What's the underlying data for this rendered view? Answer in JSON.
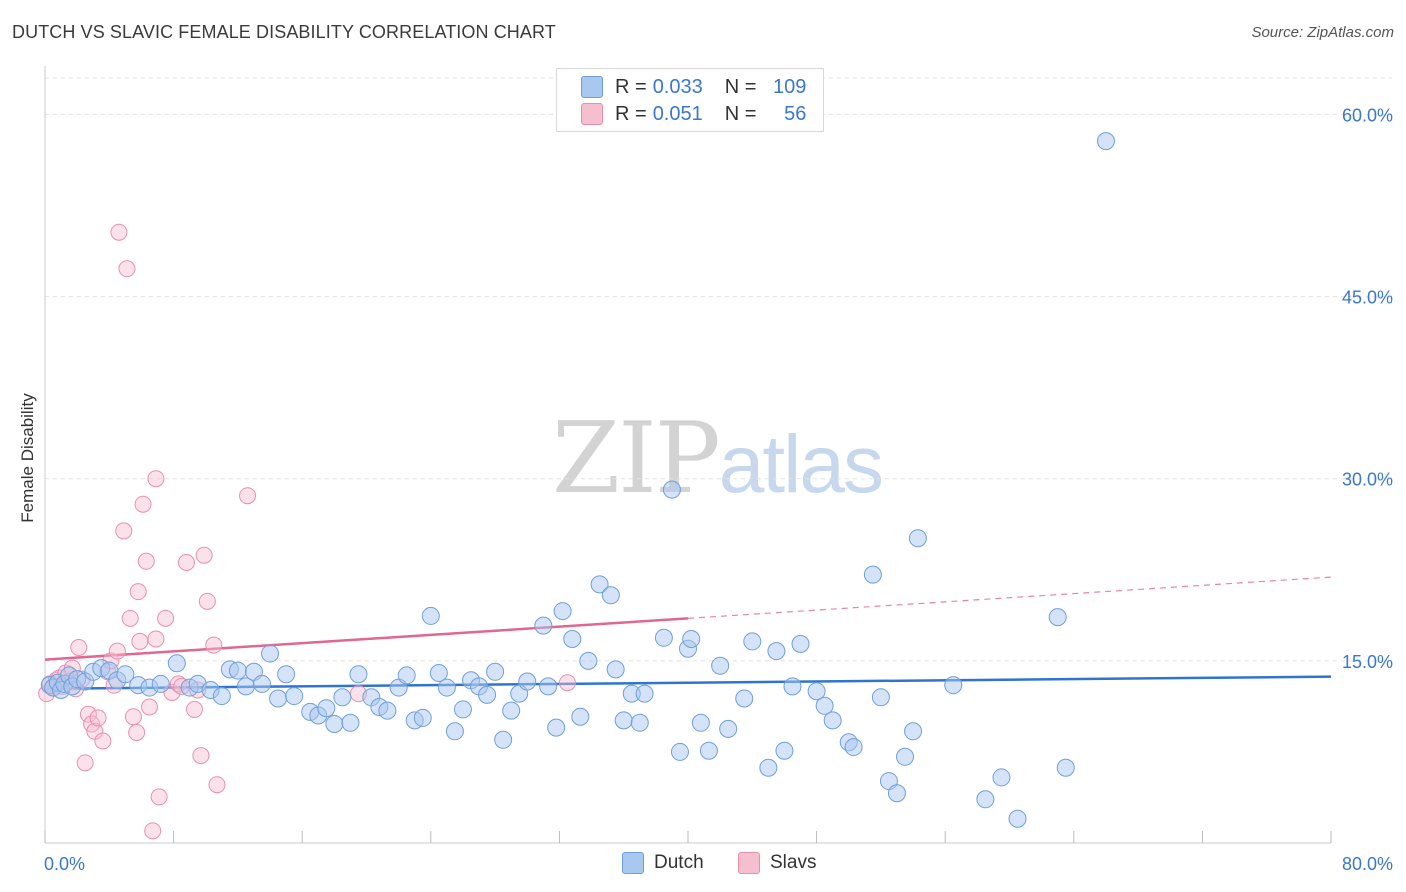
{
  "title": "DUTCH VS SLAVIC FEMALE DISABILITY CORRELATION CHART",
  "source": "Source: ZipAtlas.com",
  "watermark": {
    "zip": "ZIP",
    "atlas": "atlas"
  },
  "legend": {
    "rows": [
      {
        "r_label": "R =",
        "r_value": "0.033",
        "n_label": "N =",
        "n_value": "109"
      },
      {
        "r_label": "R =",
        "r_value": "0.051",
        "n_label": "N =",
        "n_value": "56"
      }
    ]
  },
  "bottom_legend": [
    "Dutch",
    "Slavs"
  ],
  "colors": {
    "dutch_fill": "#a9c8ef",
    "dutch_stroke": "#6f9fda",
    "dutch_line": "#2f74d0",
    "slavs_fill": "#f6bfd0",
    "slavs_stroke": "#e98fae",
    "slavs_line": "#e0678f",
    "tick_label": "#3a77d0",
    "grid": "#e3e3e3"
  },
  "chart_data": {
    "type": "scatter",
    "title": "DUTCH VS SLAVIC FEMALE DISABILITY CORRELATION CHART",
    "xlabel": "",
    "ylabel": "Female Disability",
    "xlim": [
      0,
      80
    ],
    "ylim": [
      0,
      63
    ],
    "x_tick_labels": [
      "0.0%",
      "80.0%"
    ],
    "y_ticks": [
      15,
      30,
      45,
      60
    ],
    "y_tick_labels": [
      "15.0%",
      "30.0%",
      "45.0%",
      "60.0%"
    ],
    "grid": true,
    "legend_position": "top-center",
    "series": [
      {
        "name": "Dutch",
        "R": 0.033,
        "N": 109,
        "trend": {
          "x0": 0,
          "y0": 12.7,
          "x1": 80,
          "y1": 13.7
        },
        "points": [
          [
            0.3,
            13
          ],
          [
            0.5,
            12.8
          ],
          [
            0.8,
            13.2
          ],
          [
            1.0,
            12.6
          ],
          [
            1.2,
            13.1
          ],
          [
            1.5,
            13.8
          ],
          [
            1.7,
            12.9
          ],
          [
            2.0,
            13.5
          ],
          [
            2.5,
            13.3
          ],
          [
            3.0,
            14.1
          ],
          [
            3.5,
            14.4
          ],
          [
            4.0,
            14.2
          ],
          [
            4.5,
            13.4
          ],
          [
            5.0,
            13.9
          ],
          [
            5.8,
            13.0
          ],
          [
            6.5,
            12.8
          ],
          [
            7.2,
            13.1
          ],
          [
            8.2,
            14.8
          ],
          [
            9.0,
            12.8
          ],
          [
            9.5,
            13.1
          ],
          [
            10.3,
            12.6
          ],
          [
            11.0,
            12.1
          ],
          [
            11.5,
            14.3
          ],
          [
            12.0,
            14.2
          ],
          [
            12.5,
            12.9
          ],
          [
            13.0,
            14.1
          ],
          [
            13.5,
            13.1
          ],
          [
            14.0,
            15.6
          ],
          [
            14.5,
            11.9
          ],
          [
            15.0,
            13.9
          ],
          [
            15.5,
            12.1
          ],
          [
            16.5,
            10.8
          ],
          [
            17.0,
            10.5
          ],
          [
            17.5,
            11.1
          ],
          [
            18.0,
            9.8
          ],
          [
            18.5,
            12.0
          ],
          [
            19.0,
            9.9
          ],
          [
            19.5,
            13.9
          ],
          [
            20.3,
            12.0
          ],
          [
            20.8,
            11.2
          ],
          [
            21.3,
            10.9
          ],
          [
            22.0,
            12.8
          ],
          [
            22.5,
            13.8
          ],
          [
            23.0,
            10.1
          ],
          [
            23.5,
            10.3
          ],
          [
            24.0,
            18.7
          ],
          [
            24.5,
            14.0
          ],
          [
            25.0,
            12.8
          ],
          [
            25.5,
            9.2
          ],
          [
            26.0,
            11.0
          ],
          [
            26.5,
            13.4
          ],
          [
            27.0,
            12.9
          ],
          [
            27.5,
            12.2
          ],
          [
            28.0,
            14.1
          ],
          [
            28.5,
            8.5
          ],
          [
            29.0,
            10.9
          ],
          [
            29.5,
            12.3
          ],
          [
            30.0,
            13.3
          ],
          [
            31.0,
            17.9
          ],
          [
            31.3,
            12.9
          ],
          [
            31.8,
            9.5
          ],
          [
            32.2,
            19.1
          ],
          [
            32.8,
            16.8
          ],
          [
            33.3,
            10.4
          ],
          [
            33.8,
            15.0
          ],
          [
            34.5,
            21.3
          ],
          [
            35.2,
            20.4
          ],
          [
            35.5,
            14.3
          ],
          [
            36.0,
            10.1
          ],
          [
            36.5,
            12.3
          ],
          [
            37.0,
            9.9
          ],
          [
            37.3,
            12.3
          ],
          [
            38.5,
            16.9
          ],
          [
            39.0,
            29.1
          ],
          [
            39.5,
            7.5
          ],
          [
            40.0,
            16.0
          ],
          [
            40.2,
            16.8
          ],
          [
            40.8,
            9.9
          ],
          [
            41.3,
            7.6
          ],
          [
            42.0,
            14.6
          ],
          [
            42.5,
            9.4
          ],
          [
            43.5,
            11.9
          ],
          [
            44.0,
            16.6
          ],
          [
            45.0,
            6.2
          ],
          [
            45.5,
            15.8
          ],
          [
            46.0,
            7.6
          ],
          [
            46.5,
            12.9
          ],
          [
            47.0,
            16.4
          ],
          [
            48.0,
            12.5
          ],
          [
            48.5,
            11.3
          ],
          [
            49.0,
            10.1
          ],
          [
            50.0,
            8.3
          ],
          [
            50.3,
            7.9
          ],
          [
            51.5,
            22.1
          ],
          [
            52.0,
            12.0
          ],
          [
            52.5,
            5.1
          ],
          [
            53.0,
            4.1
          ],
          [
            53.5,
            7.1
          ],
          [
            54.0,
            9.2
          ],
          [
            54.3,
            25.1
          ],
          [
            56.5,
            13.0
          ],
          [
            58.5,
            3.6
          ],
          [
            59.5,
            5.4
          ],
          [
            60.5,
            2.0
          ],
          [
            63.0,
            18.6
          ],
          [
            63.5,
            6.2
          ],
          [
            66.0,
            57.8
          ]
        ]
      },
      {
        "name": "Slavs",
        "R": 0.051,
        "N": 56,
        "trend": {
          "x0": 0,
          "y0": 15.1,
          "x1": 40,
          "y1": 18.5
        },
        "trend_dashed": {
          "x0": 40,
          "y0": 18.5,
          "x1": 80,
          "y1": 21.9
        },
        "points": [
          [
            0.1,
            12.3
          ],
          [
            0.3,
            13.1
          ],
          [
            0.5,
            12.8
          ],
          [
            0.7,
            13.4
          ],
          [
            0.9,
            13.6
          ],
          [
            1.1,
            12.9
          ],
          [
            1.3,
            14.0
          ],
          [
            1.5,
            13.3
          ],
          [
            1.7,
            14.4
          ],
          [
            1.9,
            12.7
          ],
          [
            2.1,
            16.1
          ],
          [
            2.3,
            13.5
          ],
          [
            2.5,
            6.6
          ],
          [
            2.7,
            10.6
          ],
          [
            2.9,
            9.8
          ],
          [
            3.1,
            9.2
          ],
          [
            3.3,
            10.3
          ],
          [
            3.6,
            8.4
          ],
          [
            3.9,
            14.1
          ],
          [
            4.1,
            15.0
          ],
          [
            4.3,
            13.0
          ],
          [
            4.5,
            15.8
          ],
          [
            4.6,
            50.3
          ],
          [
            4.9,
            25.7
          ],
          [
            5.1,
            47.3
          ],
          [
            5.3,
            18.5
          ],
          [
            5.5,
            10.4
          ],
          [
            5.7,
            9.1
          ],
          [
            5.8,
            20.7
          ],
          [
            5.9,
            16.6
          ],
          [
            6.1,
            27.9
          ],
          [
            6.3,
            23.2
          ],
          [
            6.5,
            11.2
          ],
          [
            6.7,
            1.0
          ],
          [
            6.9,
            30.0
          ],
          [
            6.9,
            16.8
          ],
          [
            7.1,
            3.8
          ],
          [
            7.5,
            18.5
          ],
          [
            7.9,
            12.4
          ],
          [
            8.3,
            13.1
          ],
          [
            8.5,
            12.9
          ],
          [
            8.8,
            23.1
          ],
          [
            9.3,
            11.0
          ],
          [
            9.5,
            12.6
          ],
          [
            9.7,
            7.2
          ],
          [
            9.9,
            23.7
          ],
          [
            10.1,
            19.9
          ],
          [
            10.5,
            16.3
          ],
          [
            10.7,
            4.8
          ],
          [
            12.6,
            28.6
          ],
          [
            19.5,
            12.3
          ],
          [
            32.5,
            13.2
          ]
        ]
      }
    ]
  }
}
